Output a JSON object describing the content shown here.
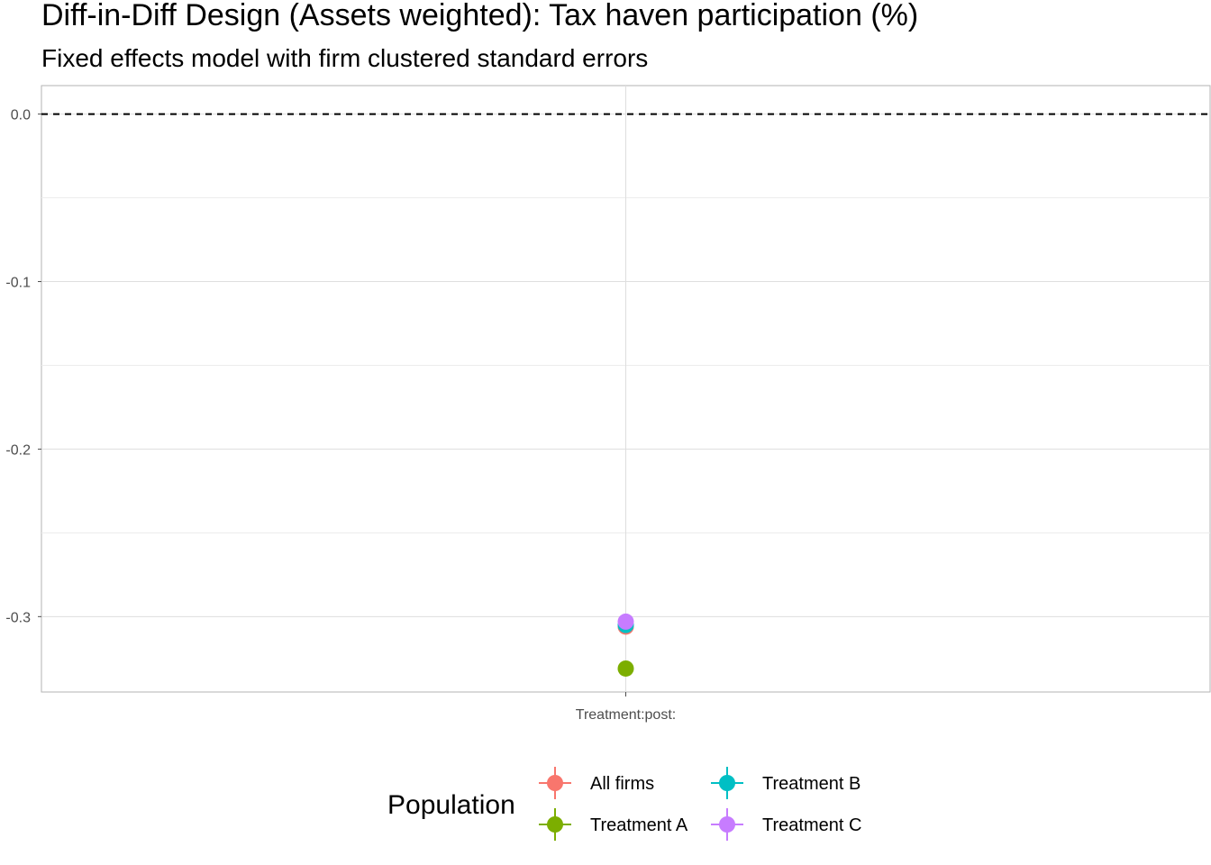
{
  "chart_data": {
    "type": "scatter",
    "title": "Diff-in-Diff Design (Assets weighted): Tax haven participation (%)",
    "subtitle": "Fixed effects model with firm clustered standard errors",
    "xlabel": "",
    "ylabel": "",
    "categories": [
      "Treatment:post:"
    ],
    "ylim": [
      -0.345,
      0.017
    ],
    "yticks": [
      0.0,
      -0.1,
      -0.2,
      -0.3
    ],
    "ytick_labels": [
      "0.0",
      "-0.1",
      "-0.2",
      "-0.3"
    ],
    "reference_line": 0.0,
    "grid": true,
    "legend": {
      "title": "Population",
      "position": "bottom"
    },
    "series": [
      {
        "name": "All firms",
        "color": "#F8766D",
        "values": [
          -0.306
        ]
      },
      {
        "name": "Treatment A",
        "color": "#7CAE00",
        "values": [
          -0.331
        ]
      },
      {
        "name": "Treatment B",
        "color": "#00BFC4",
        "values": [
          -0.305
        ]
      },
      {
        "name": "Treatment C",
        "color": "#C77CFF",
        "values": [
          -0.303
        ]
      }
    ]
  }
}
